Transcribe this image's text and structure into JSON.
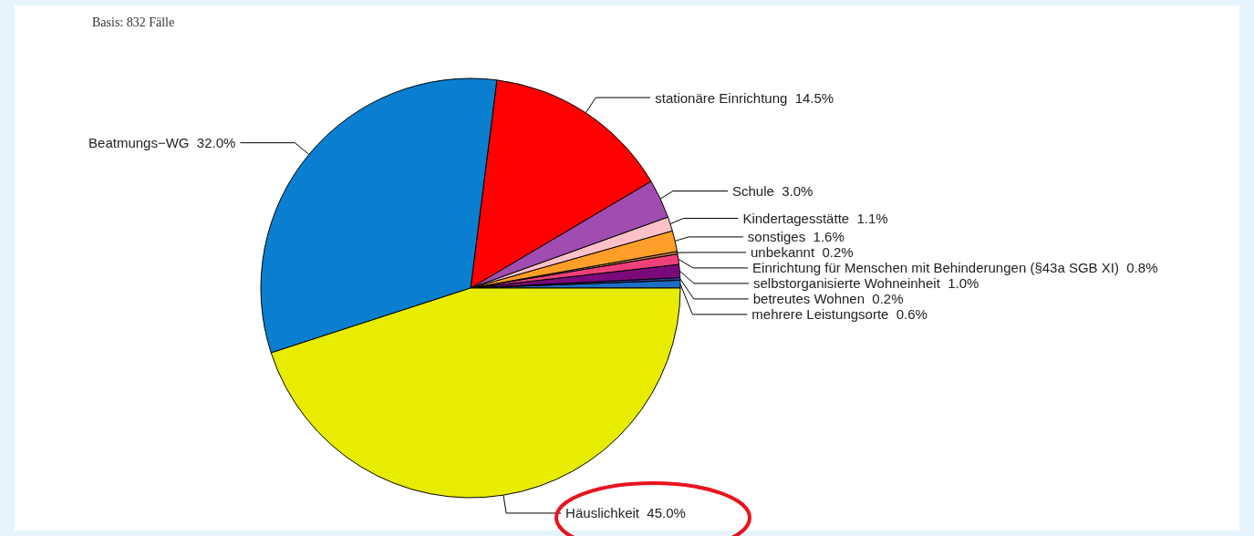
{
  "chart_data": {
    "type": "pie",
    "title": "Basis: 832 Fälle",
    "categories": [
      "mehrere Leistungsorte",
      "betreutes Wohnen",
      "selbstorganisierte Wohneinheit",
      "Einrichtung für Menschen mit Behinderungen (§43a SGB XI)",
      "unbekannt",
      "sonstiges",
      "Kindertagesstätte",
      "Schule",
      "stationäre Einrichtung",
      "Beatmungs−WG",
      "Häuslichkeit"
    ],
    "values": [
      0.6,
      0.2,
      1.0,
      0.8,
      0.2,
      1.6,
      1.1,
      3.0,
      14.5,
      32.0,
      45.0
    ],
    "value_labels": [
      "0.6%",
      "0.2%",
      "1.0%",
      "0.8%",
      "0.2%",
      "1.6%",
      "1.1%",
      "3.0%",
      "14.5%",
      "32.0%",
      "45.0%"
    ],
    "colors": [
      "#1c6fc4",
      "#3a3a9a",
      "#7a0a7a",
      "#f0407a",
      "#c08040",
      "#ff9e28",
      "#ffc0c8",
      "#a04cb0",
      "#ff0000",
      "#0a7fcf",
      "#e8ec00"
    ],
    "legend": false
  }
}
